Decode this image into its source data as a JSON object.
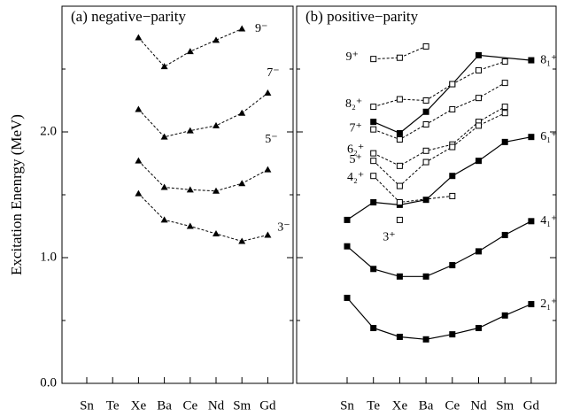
{
  "chart_data": [
    {
      "type": "line",
      "title": "(a) negative−parity",
      "ylabel": "Excitation Enenrgy (MeV)",
      "categories": [
        "Sn",
        "Te",
        "Xe",
        "Ba",
        "Ce",
        "Nd",
        "Sm",
        "Gd"
      ],
      "ylim": [
        0,
        3.0
      ],
      "yticks": [
        {
          "value": 0,
          "label": "0.0"
        },
        {
          "value": 1,
          "label": "1.0"
        },
        {
          "value": 2,
          "label": "2.0"
        }
      ],
      "minor_yticks": [
        0.5,
        1.5,
        2.5
      ],
      "series": [
        {
          "name": "9⁻",
          "color": "#000",
          "marker": "triangle",
          "dashed": true,
          "values": [
            null,
            null,
            2.75,
            2.52,
            2.64,
            2.73,
            2.82,
            null
          ]
        },
        {
          "name": "7⁻",
          "color": "#000",
          "marker": "triangle",
          "dashed": true,
          "values": [
            null,
            null,
            2.18,
            1.96,
            2.01,
            2.05,
            2.15,
            2.31
          ]
        },
        {
          "name": "5⁻",
          "color": "#000",
          "marker": "triangle",
          "dashed": true,
          "values": [
            null,
            null,
            1.77,
            1.56,
            1.54,
            1.53,
            1.59,
            1.7
          ]
        },
        {
          "name": "3⁻",
          "color": "#000",
          "marker": "triangle",
          "dashed": true,
          "values": [
            null,
            null,
            1.51,
            1.3,
            1.25,
            1.19,
            1.13,
            1.18
          ]
        }
      ]
    },
    {
      "type": "line",
      "title": "(b) positive−parity",
      "categories": [
        "Sn",
        "Te",
        "Xe",
        "Ba",
        "Ce",
        "Nd",
        "Sm",
        "Gd"
      ],
      "ylim": [
        0,
        3.0
      ],
      "series": [
        {
          "name": "2₁⁺",
          "color": "#000",
          "marker": "square",
          "dashed": false,
          "values": [
            0.68,
            0.44,
            0.37,
            0.35,
            0.39,
            0.44,
            0.54,
            0.63
          ]
        },
        {
          "name": "4₁⁺",
          "color": "#000",
          "marker": "square",
          "dashed": false,
          "values": [
            1.09,
            0.91,
            0.85,
            0.85,
            0.94,
            1.05,
            1.18,
            1.29
          ]
        },
        {
          "name": "6₁⁺",
          "color": "#000",
          "marker": "square",
          "dashed": false,
          "values": [
            1.3,
            1.44,
            1.42,
            1.46,
            1.65,
            1.77,
            1.92,
            1.96
          ]
        },
        {
          "name": "8₁⁺",
          "color": "#000",
          "marker": "square",
          "dashed": false,
          "values": [
            null,
            2.08,
            1.99,
            2.16,
            2.38,
            2.61,
            null,
            2.57
          ]
        },
        {
          "name": "9⁺",
          "color": "#000",
          "marker": "open-square",
          "dashed": true,
          "values": [
            null,
            2.58,
            2.59,
            2.68,
            null,
            null,
            null,
            null
          ]
        },
        {
          "name": "8₂⁺",
          "color": "#000",
          "marker": "open-square",
          "dashed": true,
          "values": [
            null,
            2.2,
            2.26,
            2.25,
            2.38,
            2.49,
            2.56,
            null
          ]
        },
        {
          "name": "7⁺",
          "color": "#000",
          "marker": "open-square",
          "dashed": true,
          "values": [
            null,
            2.02,
            1.94,
            2.06,
            2.18,
            2.27,
            2.39,
            null
          ]
        },
        {
          "name": "6₂⁺",
          "color": "#000",
          "marker": "open-square",
          "dashed": true,
          "values": [
            null,
            1.83,
            1.73,
            1.85,
            1.9,
            2.08,
            2.2,
            null
          ]
        },
        {
          "name": "5⁺",
          "color": "#000",
          "marker": "open-square",
          "dashed": true,
          "values": [
            null,
            1.77,
            1.57,
            1.76,
            1.88,
            2.05,
            2.15,
            null
          ]
        },
        {
          "name": "4₂⁺",
          "color": "#000",
          "marker": "open-square",
          "dashed": true,
          "values": [
            null,
            1.65,
            1.44,
            null,
            1.49,
            null,
            null,
            null
          ]
        },
        {
          "name": "3⁺",
          "color": "#000",
          "marker": "open-square",
          "dashed": true,
          "values": [
            null,
            null,
            1.3,
            null,
            null,
            null,
            null,
            null
          ]
        }
      ]
    }
  ]
}
